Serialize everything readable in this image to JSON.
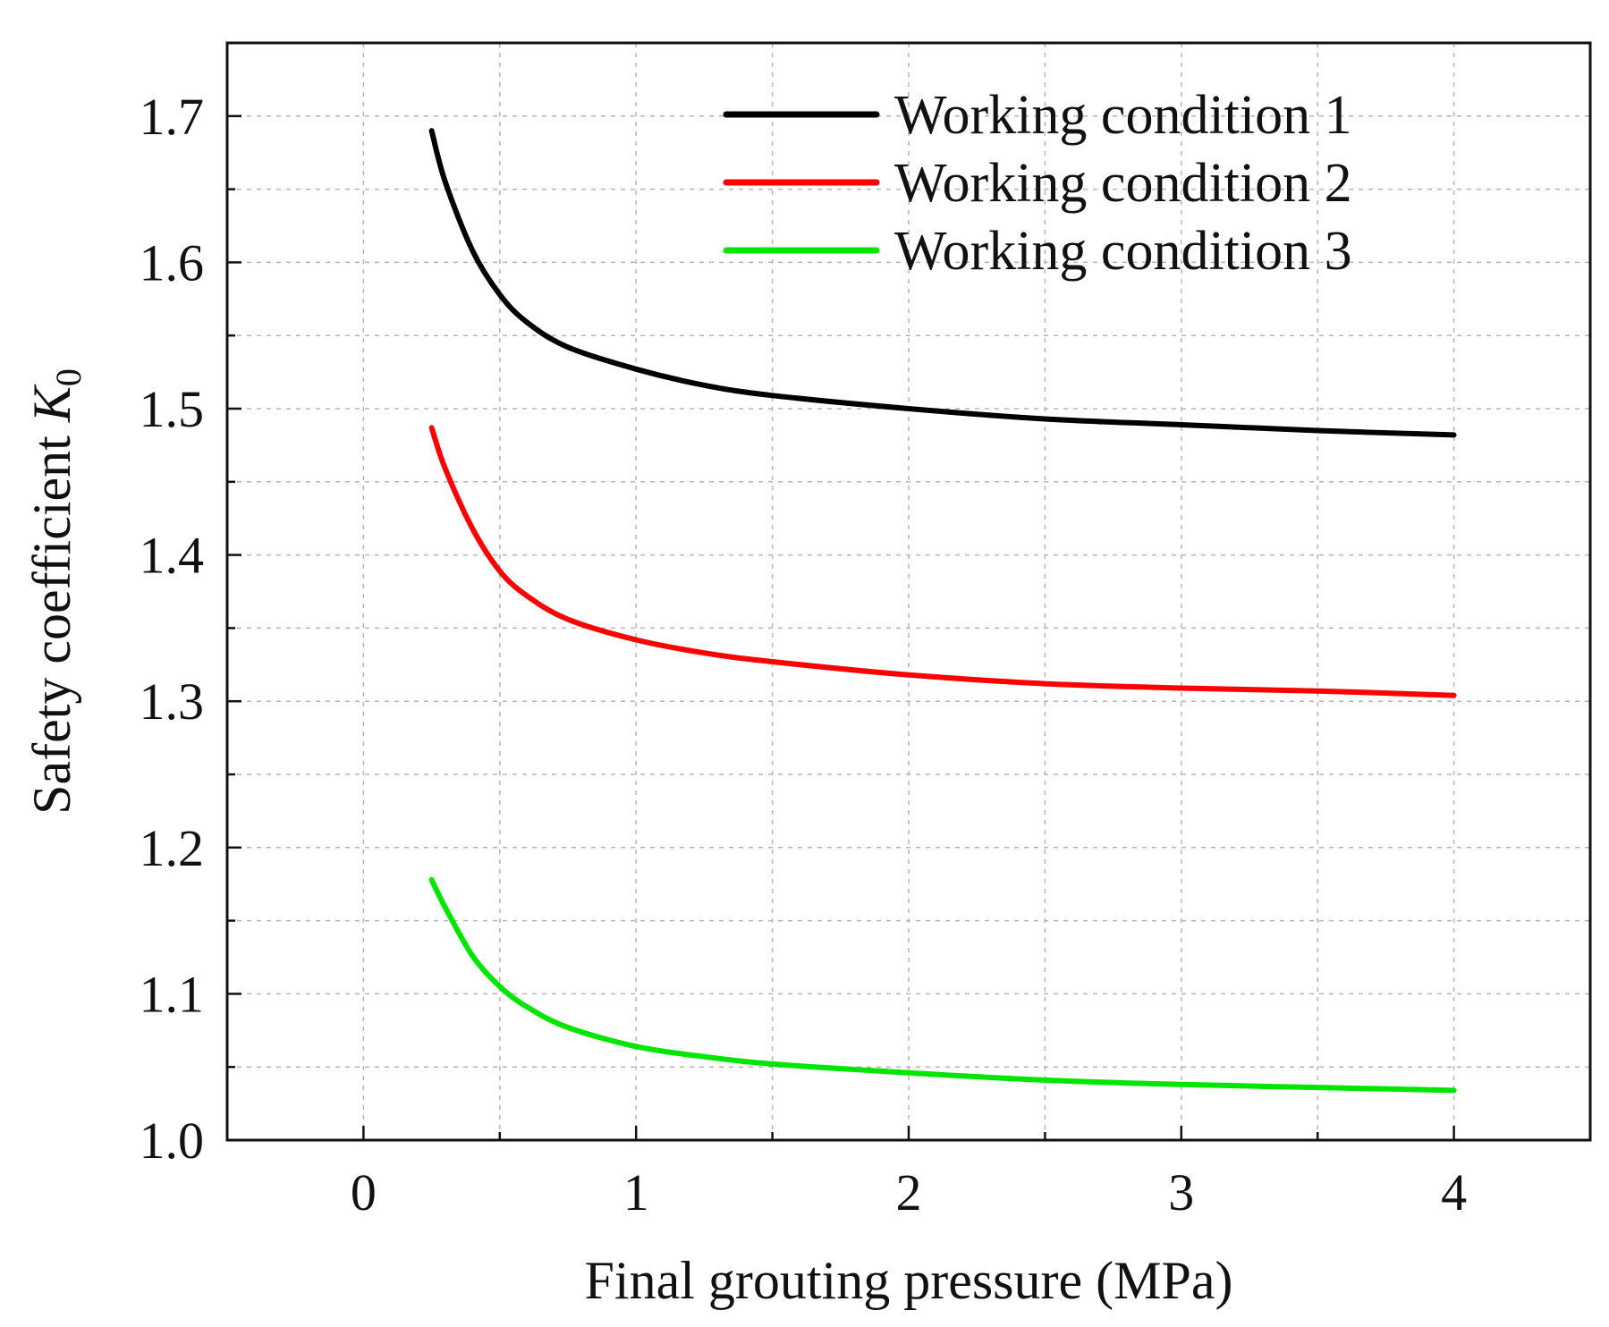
{
  "chart_data": {
    "type": "line",
    "title": "",
    "xlabel": "Final grouting pressure (MPa)",
    "ylabel_main": "Safety coefficient ",
    "ylabel_symbol": "K",
    "ylabel_subscript": "0",
    "xlim": [
      -0.5,
      4.5
    ],
    "ylim": [
      1.0,
      1.75
    ],
    "x_ticks": [
      0,
      1,
      2,
      3,
      4
    ],
    "x_tick_labels": [
      "0",
      "1",
      "2",
      "3",
      "4"
    ],
    "x_minor_ticks": [
      -0.5,
      0.5,
      1.5,
      2.5,
      3.5,
      4.5
    ],
    "y_ticks": [
      1.0,
      1.1,
      1.2,
      1.3,
      1.4,
      1.5,
      1.6,
      1.7
    ],
    "y_tick_labels": [
      "1.0",
      "1.1",
      "1.2",
      "1.3",
      "1.4",
      "1.5",
      "1.6",
      "1.7"
    ],
    "y_minor_ticks": [
      1.05,
      1.15,
      1.25,
      1.35,
      1.45,
      1.55,
      1.65
    ],
    "grid": true,
    "legend_position": "top-right",
    "x": [
      0.25,
      0.3,
      0.4,
      0.5,
      0.6,
      0.75,
      1.0,
      1.25,
      1.5,
      2.0,
      2.5,
      3.0,
      3.5,
      4.0
    ],
    "series": [
      {
        "name": "Working condition 1",
        "color": "#000000",
        "values": [
          1.69,
          1.655,
          1.608,
          1.578,
          1.559,
          1.542,
          1.527,
          1.516,
          1.509,
          1.5,
          1.493,
          1.489,
          1.485,
          1.482
        ]
      },
      {
        "name": "Working condition 2",
        "color": "#ff0000",
        "values": [
          1.487,
          1.459,
          1.418,
          1.389,
          1.372,
          1.356,
          1.342,
          1.333,
          1.327,
          1.318,
          1.312,
          1.309,
          1.307,
          1.304
        ]
      },
      {
        "name": "Working condition 3",
        "color": "#00e600",
        "values": [
          1.178,
          1.159,
          1.126,
          1.105,
          1.091,
          1.077,
          1.064,
          1.057,
          1.052,
          1.046,
          1.041,
          1.038,
          1.036,
          1.034
        ]
      }
    ]
  }
}
